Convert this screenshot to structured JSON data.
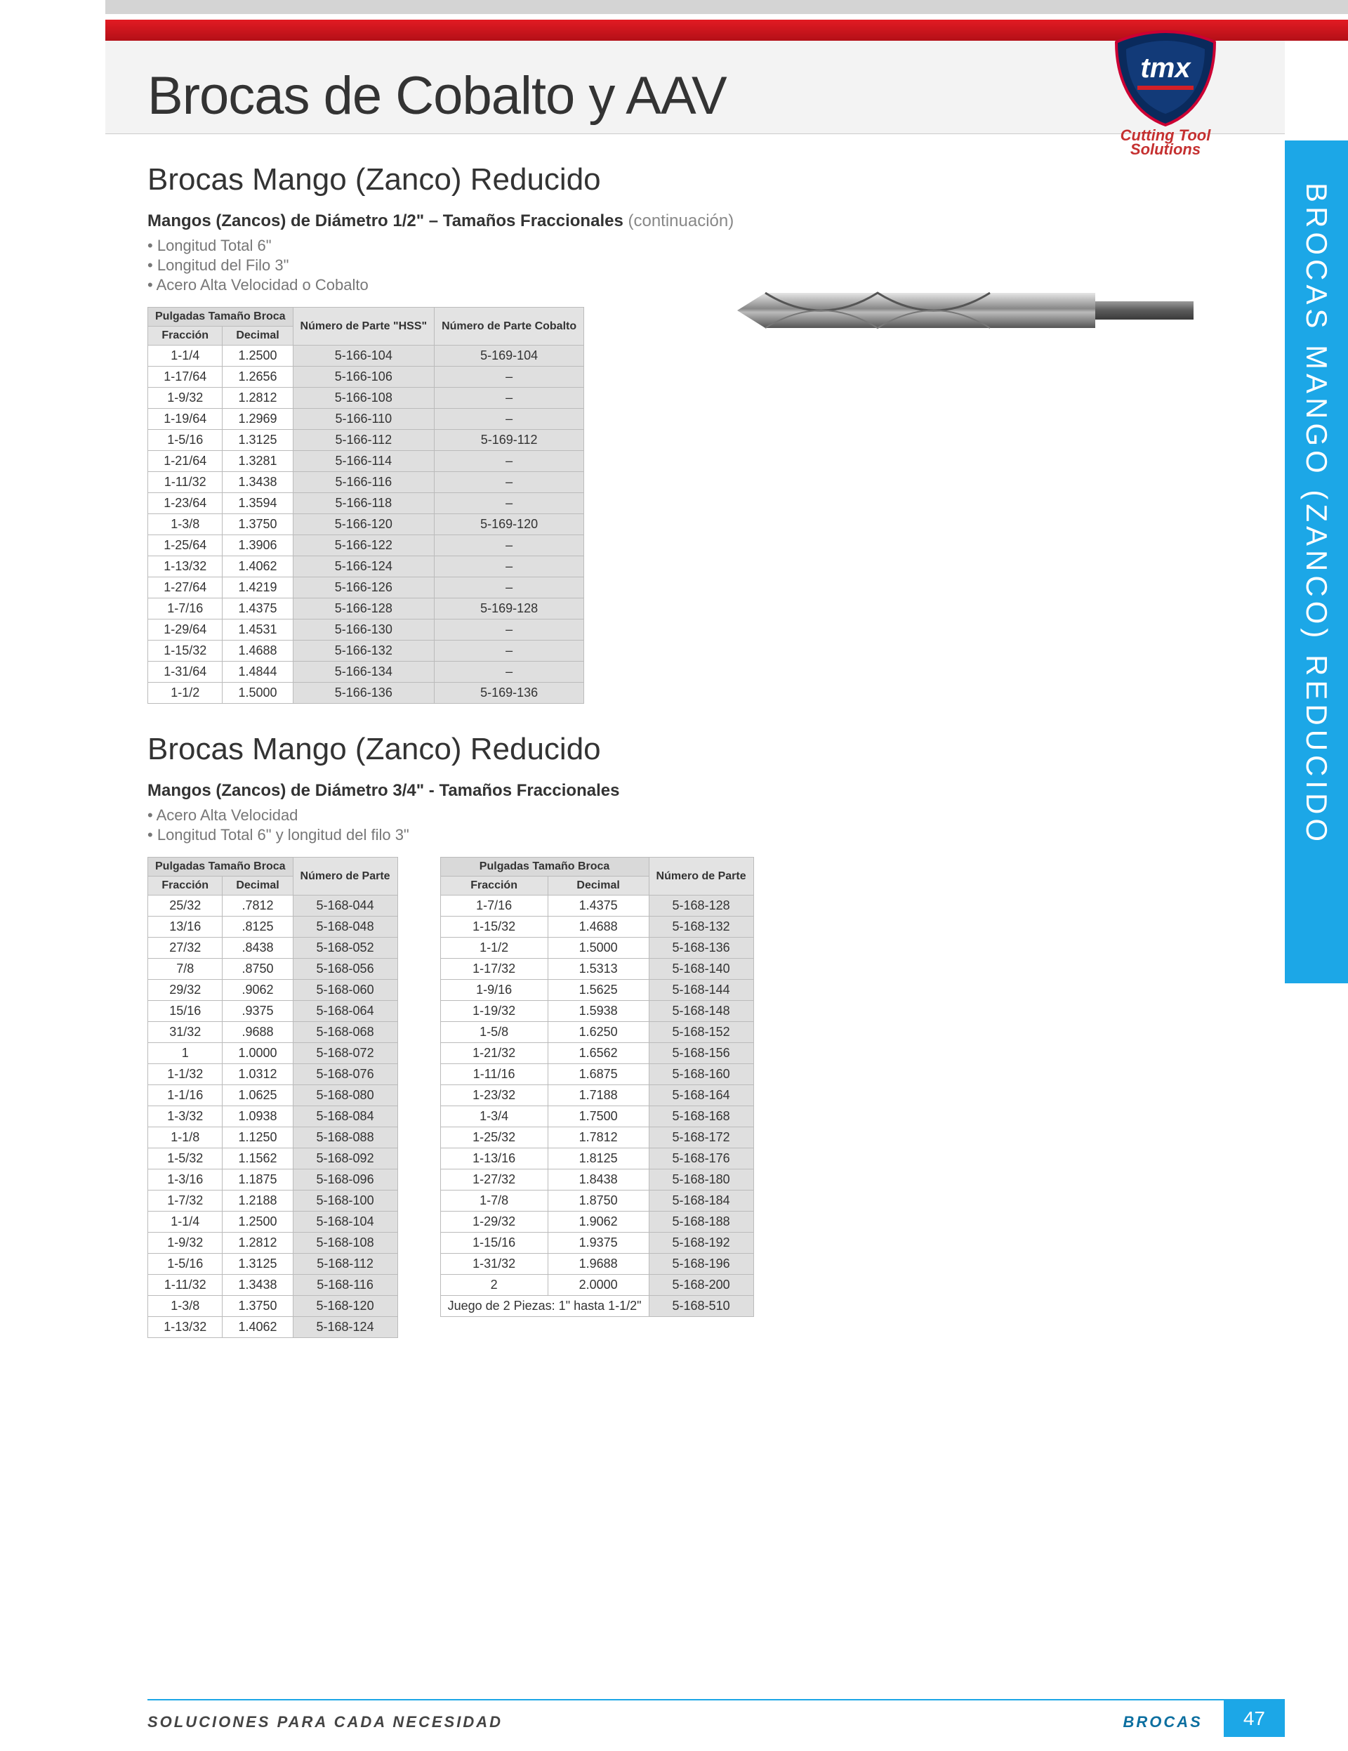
{
  "colors": {
    "accent": "#1ca7e7",
    "red": "#d21f26",
    "navy": "#0a2a5c",
    "header_bg": "#f3f3f3",
    "th_bg": "#e3e3e3",
    "pn_bg": "#dfdfdf",
    "border": "#bbbbbb",
    "text": "#333333",
    "muted": "#777777"
  },
  "header": {
    "title": "Brocas de Cobalto y AAV",
    "logo_line1": "Cutting Tool",
    "logo_line2": "Solutions"
  },
  "sidebar_tab": "BROCAS MANGO (ZANCO) REDUCIDO",
  "section1": {
    "heading": "Brocas Mango (Zanco) Reducido",
    "sub_bold": "Mangos (Zancos) de Diámetro 1/2\" – Tamaños Fraccionales",
    "sub_rest": " (continuación)",
    "bullets": [
      "Longitud Total 6\"",
      "Longitud del Filo 3\"",
      "Acero Alta Velocidad o Cobalto"
    ],
    "cols": {
      "group": "Pulgadas Tamaño Broca",
      "frac": "Fracción",
      "dec": "Decimal",
      "hss": "Número de Parte \"HSS\"",
      "cob": "Número de Parte Cobalto"
    },
    "rows": [
      [
        "1-1/4",
        "1.2500",
        "5-166-104",
        "5-169-104"
      ],
      [
        "1-17/64",
        "1.2656",
        "5-166-106",
        "–"
      ],
      [
        "1-9/32",
        "1.2812",
        "5-166-108",
        "–"
      ],
      [
        "1-19/64",
        "1.2969",
        "5-166-110",
        "–"
      ],
      [
        "1-5/16",
        "1.3125",
        "5-166-112",
        "5-169-112"
      ],
      [
        "1-21/64",
        "1.3281",
        "5-166-114",
        "–"
      ],
      [
        "1-11/32",
        "1.3438",
        "5-166-116",
        "–"
      ],
      [
        "1-23/64",
        "1.3594",
        "5-166-118",
        "–"
      ],
      [
        "1-3/8",
        "1.3750",
        "5-166-120",
        "5-169-120"
      ],
      [
        "1-25/64",
        "1.3906",
        "5-166-122",
        "–"
      ],
      [
        "1-13/32",
        "1.4062",
        "5-166-124",
        "–"
      ],
      [
        "1-27/64",
        "1.4219",
        "5-166-126",
        "–"
      ],
      [
        "1-7/16",
        "1.4375",
        "5-166-128",
        "5-169-128"
      ],
      [
        "1-29/64",
        "1.4531",
        "5-166-130",
        "–"
      ],
      [
        "1-15/32",
        "1.4688",
        "5-166-132",
        "–"
      ],
      [
        "1-31/64",
        "1.4844",
        "5-166-134",
        "–"
      ],
      [
        "1-1/2",
        "1.5000",
        "5-166-136",
        "5-169-136"
      ]
    ]
  },
  "section2": {
    "heading": "Brocas Mango (Zanco) Reducido",
    "sub_bold": "Mangos (Zancos) de Diámetro 3/4\" - Tamaños Fraccionales",
    "bullets": [
      "Acero Alta Velocidad",
      "Longitud Total 6\" y longitud del filo 3\""
    ],
    "cols": {
      "group": "Pulgadas Tamaño Broca",
      "frac": "Fracción",
      "dec": "Decimal",
      "pn": "Número de Parte"
    },
    "left_rows": [
      [
        "25/32",
        ".7812",
        "5-168-044"
      ],
      [
        "13/16",
        ".8125",
        "5-168-048"
      ],
      [
        "27/32",
        ".8438",
        "5-168-052"
      ],
      [
        "7/8",
        ".8750",
        "5-168-056"
      ],
      [
        "29/32",
        ".9062",
        "5-168-060"
      ],
      [
        "15/16",
        ".9375",
        "5-168-064"
      ],
      [
        "31/32",
        ".9688",
        "5-168-068"
      ],
      [
        "1",
        "1.0000",
        "5-168-072"
      ],
      [
        "1-1/32",
        "1.0312",
        "5-168-076"
      ],
      [
        "1-1/16",
        "1.0625",
        "5-168-080"
      ],
      [
        "1-3/32",
        "1.0938",
        "5-168-084"
      ],
      [
        "1-1/8",
        "1.1250",
        "5-168-088"
      ],
      [
        "1-5/32",
        "1.1562",
        "5-168-092"
      ],
      [
        "1-3/16",
        "1.1875",
        "5-168-096"
      ],
      [
        "1-7/32",
        "1.2188",
        "5-168-100"
      ],
      [
        "1-1/4",
        "1.2500",
        "5-168-104"
      ],
      [
        "1-9/32",
        "1.2812",
        "5-168-108"
      ],
      [
        "1-5/16",
        "1.3125",
        "5-168-112"
      ],
      [
        "1-11/32",
        "1.3438",
        "5-168-116"
      ],
      [
        "1-3/8",
        "1.3750",
        "5-168-120"
      ],
      [
        "1-13/32",
        "1.4062",
        "5-168-124"
      ]
    ],
    "right_rows": [
      [
        "1-7/16",
        "1.4375",
        "5-168-128"
      ],
      [
        "1-15/32",
        "1.4688",
        "5-168-132"
      ],
      [
        "1-1/2",
        "1.5000",
        "5-168-136"
      ],
      [
        "1-17/32",
        "1.5313",
        "5-168-140"
      ],
      [
        "1-9/16",
        "1.5625",
        "5-168-144"
      ],
      [
        "1-19/32",
        "1.5938",
        "5-168-148"
      ],
      [
        "1-5/8",
        "1.6250",
        "5-168-152"
      ],
      [
        "1-21/32",
        "1.6562",
        "5-168-156"
      ],
      [
        "1-11/16",
        "1.6875",
        "5-168-160"
      ],
      [
        "1-23/32",
        "1.7188",
        "5-168-164"
      ],
      [
        "1-3/4",
        "1.7500",
        "5-168-168"
      ],
      [
        "1-25/32",
        "1.7812",
        "5-168-172"
      ],
      [
        "1-13/16",
        "1.8125",
        "5-168-176"
      ],
      [
        "1-27/32",
        "1.8438",
        "5-168-180"
      ],
      [
        "1-7/8",
        "1.8750",
        "5-168-184"
      ],
      [
        "1-29/32",
        "1.9062",
        "5-168-188"
      ],
      [
        "1-15/16",
        "1.9375",
        "5-168-192"
      ],
      [
        "1-31/32",
        "1.9688",
        "5-168-196"
      ],
      [
        "2",
        "2.0000",
        "5-168-200"
      ],
      [
        "Juego de 2 Piezas: 1\" hasta 1-1/2\"",
        "",
        "5-168-510"
      ]
    ]
  },
  "footer": {
    "left": "SOLUCIONES PARA CADA NECESIDAD",
    "brocas": "BROCAS",
    "page": "47"
  }
}
